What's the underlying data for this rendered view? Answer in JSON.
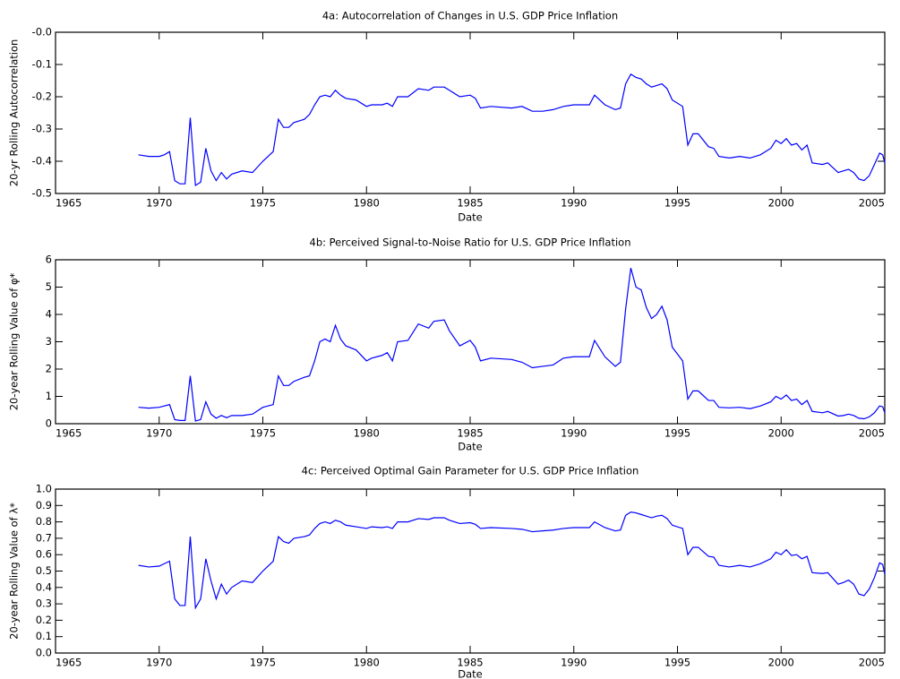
{
  "chart_data": [
    {
      "type": "line",
      "title": "4a: Autocorrelation of Changes in U.S. GDP Price Inflation",
      "x_label": "Date",
      "y_label": "20-yr Rolling Autocorrelation",
      "xlim": [
        1965,
        2005
      ],
      "xticks": [
        1965,
        1970,
        1975,
        1980,
        1985,
        1990,
        1995,
        2000,
        2005
      ],
      "ylim": [
        -0.5,
        0
      ],
      "yticks": [
        -0.5,
        -0.4,
        -0.3,
        -0.2,
        -0.1,
        {
          "value": 0,
          "label": "-0.0"
        }
      ],
      "x": [
        1969.0,
        1969.5,
        1970.0,
        1970.25,
        1970.5,
        1970.75,
        1971.0,
        1971.25,
        1971.5,
        1971.75,
        1972.0,
        1972.25,
        1972.5,
        1972.75,
        1973.0,
        1973.25,
        1973.5,
        1974.0,
        1974.5,
        1975.0,
        1975.5,
        1975.75,
        1976.0,
        1976.25,
        1976.5,
        1977.0,
        1977.25,
        1977.5,
        1977.75,
        1978.0,
        1978.25,
        1978.5,
        1978.75,
        1979.0,
        1979.5,
        1980.0,
        1980.25,
        1980.75,
        1981.0,
        1981.25,
        1981.5,
        1982.0,
        1982.5,
        1983.0,
        1983.25,
        1983.75,
        1984.0,
        1984.5,
        1985.0,
        1985.25,
        1985.5,
        1986.0,
        1987.0,
        1987.5,
        1988.0,
        1988.5,
        1989.0,
        1989.5,
        1990.0,
        1990.75,
        1991.0,
        1991.5,
        1992.0,
        1992.25,
        1992.5,
        1992.75,
        1993.0,
        1993.25,
        1993.5,
        1993.75,
        1994.0,
        1994.25,
        1994.5,
        1994.75,
        1995.25,
        1995.5,
        1995.75,
        1996.0,
        1996.5,
        1996.75,
        1997.0,
        1997.5,
        1998.0,
        1998.5,
        1999.0,
        1999.5,
        1999.75,
        2000.0,
        2000.25,
        2000.5,
        2000.75,
        2001.0,
        2001.25,
        2001.5,
        2002.0,
        2002.25,
        2002.75,
        2003.0,
        2003.25,
        2003.5,
        2003.75,
        2004.0,
        2004.25,
        2004.5,
        2004.75,
        2004.9,
        2005.0
      ],
      "series": [
        {
          "color": "#0000ff",
          "values": [
            -0.38,
            -0.385,
            -0.385,
            -0.38,
            -0.37,
            -0.46,
            -0.47,
            -0.47,
            -0.265,
            -0.475,
            -0.465,
            -0.36,
            -0.43,
            -0.46,
            -0.435,
            -0.455,
            -0.44,
            -0.43,
            -0.435,
            -0.4,
            -0.37,
            -0.27,
            -0.295,
            -0.295,
            -0.28,
            -0.27,
            -0.255,
            -0.225,
            -0.2,
            -0.195,
            -0.2,
            -0.18,
            -0.195,
            -0.205,
            -0.21,
            -0.23,
            -0.225,
            -0.225,
            -0.22,
            -0.23,
            -0.2,
            -0.2,
            -0.175,
            -0.18,
            -0.17,
            -0.17,
            -0.18,
            -0.2,
            -0.195,
            -0.205,
            -0.235,
            -0.23,
            -0.235,
            -0.23,
            -0.245,
            -0.245,
            -0.24,
            -0.23,
            -0.225,
            -0.225,
            -0.195,
            -0.225,
            -0.24,
            -0.235,
            -0.16,
            -0.13,
            -0.14,
            -0.145,
            -0.16,
            -0.17,
            -0.165,
            -0.16,
            -0.175,
            -0.21,
            -0.23,
            -0.35,
            -0.315,
            -0.315,
            -0.355,
            -0.36,
            -0.385,
            -0.39,
            -0.385,
            -0.39,
            -0.38,
            -0.36,
            -0.335,
            -0.345,
            -0.33,
            -0.35,
            -0.345,
            -0.365,
            -0.35,
            -0.405,
            -0.41,
            -0.405,
            -0.435,
            -0.43,
            -0.425,
            -0.435,
            -0.455,
            -0.46,
            -0.445,
            -0.41,
            -0.375,
            -0.38,
            -0.405
          ]
        }
      ]
    },
    {
      "type": "line",
      "title": "4b: Perceived Signal-to-Noise Ratio for U.S. GDP Price Inflation",
      "x_label": "Date",
      "y_label": "20-year Rolling Value of φ*",
      "xlim": [
        1965,
        2005
      ],
      "xticks": [
        1965,
        1970,
        1975,
        1980,
        1985,
        1990,
        1995,
        2000,
        2005
      ],
      "ylim": [
        0,
        6
      ],
      "yticks": [
        0,
        1,
        2,
        3,
        4,
        5,
        6
      ],
      "x": [
        1969.0,
        1969.5,
        1970.0,
        1970.25,
        1970.5,
        1970.75,
        1971.0,
        1971.25,
        1971.5,
        1971.75,
        1972.0,
        1972.25,
        1972.5,
        1972.75,
        1973.0,
        1973.25,
        1973.5,
        1974.0,
        1974.5,
        1975.0,
        1975.5,
        1975.75,
        1976.0,
        1976.25,
        1976.5,
        1977.0,
        1977.25,
        1977.5,
        1977.75,
        1978.0,
        1978.25,
        1978.5,
        1978.75,
        1979.0,
        1979.5,
        1980.0,
        1980.25,
        1980.75,
        1981.0,
        1981.25,
        1981.5,
        1982.0,
        1982.5,
        1983.0,
        1983.25,
        1983.75,
        1984.0,
        1984.5,
        1985.0,
        1985.25,
        1985.5,
        1986.0,
        1987.0,
        1987.5,
        1988.0,
        1988.5,
        1989.0,
        1989.5,
        1990.0,
        1990.75,
        1991.0,
        1991.5,
        1992.0,
        1992.25,
        1992.5,
        1992.75,
        1993.0,
        1993.25,
        1993.5,
        1993.75,
        1994.0,
        1994.25,
        1994.5,
        1994.75,
        1995.25,
        1995.5,
        1995.75,
        1996.0,
        1996.5,
        1996.75,
        1997.0,
        1997.5,
        1998.0,
        1998.5,
        1999.0,
        1999.5,
        1999.75,
        2000.0,
        2000.25,
        2000.5,
        2000.75,
        2001.0,
        2001.25,
        2001.5,
        2002.0,
        2002.25,
        2002.75,
        2003.0,
        2003.25,
        2003.5,
        2003.75,
        2004.0,
        2004.25,
        2004.5,
        2004.75,
        2004.9,
        2005.0
      ],
      "series": [
        {
          "color": "#0000ff",
          "values": [
            0.6,
            0.57,
            0.6,
            0.65,
            0.7,
            0.15,
            0.12,
            0.12,
            1.75,
            0.1,
            0.15,
            0.8,
            0.35,
            0.2,
            0.3,
            0.22,
            0.3,
            0.3,
            0.35,
            0.6,
            0.7,
            1.75,
            1.4,
            1.4,
            1.55,
            1.7,
            1.75,
            2.3,
            3.0,
            3.1,
            3.0,
            3.6,
            3.1,
            2.85,
            2.7,
            2.3,
            2.4,
            2.5,
            2.6,
            2.3,
            3.0,
            3.05,
            3.65,
            3.5,
            3.75,
            3.8,
            3.4,
            2.85,
            3.05,
            2.8,
            2.3,
            2.4,
            2.35,
            2.25,
            2.05,
            2.1,
            2.15,
            2.4,
            2.45,
            2.45,
            3.05,
            2.45,
            2.1,
            2.25,
            4.2,
            5.7,
            5.0,
            4.9,
            4.25,
            3.85,
            4.0,
            4.3,
            3.8,
            2.8,
            2.3,
            0.9,
            1.2,
            1.2,
            0.85,
            0.85,
            0.6,
            0.58,
            0.6,
            0.55,
            0.65,
            0.8,
            1.0,
            0.9,
            1.05,
            0.85,
            0.9,
            0.7,
            0.85,
            0.45,
            0.4,
            0.45,
            0.28,
            0.3,
            0.35,
            0.3,
            0.2,
            0.18,
            0.25,
            0.4,
            0.65,
            0.62,
            0.4
          ]
        }
      ]
    },
    {
      "type": "line",
      "title": "4c: Perceived Optimal Gain Parameter for U.S. GDP Price Inflation",
      "x_label": "Date",
      "y_label": "20-year Rolling Value of λ*",
      "xlim": [
        1965,
        2005
      ],
      "xticks": [
        1965,
        1970,
        1975,
        1980,
        1985,
        1990,
        1995,
        2000,
        2005
      ],
      "ylim": [
        0,
        1
      ],
      "yticks": [
        {
          "value": 0,
          "label": "0.0"
        },
        0.1,
        0.2,
        0.3,
        0.4,
        0.5,
        0.6,
        0.7,
        0.8,
        0.9,
        {
          "value": 1,
          "label": "1.0"
        }
      ],
      "x": [
        1969.0,
        1969.5,
        1970.0,
        1970.25,
        1970.5,
        1970.75,
        1971.0,
        1971.25,
        1971.5,
        1971.75,
        1972.0,
        1972.25,
        1972.5,
        1972.75,
        1973.0,
        1973.25,
        1973.5,
        1974.0,
        1974.5,
        1975.0,
        1975.5,
        1975.75,
        1976.0,
        1976.25,
        1976.5,
        1977.0,
        1977.25,
        1977.5,
        1977.75,
        1978.0,
        1978.25,
        1978.5,
        1978.75,
        1979.0,
        1979.5,
        1980.0,
        1980.25,
        1980.75,
        1981.0,
        1981.25,
        1981.5,
        1982.0,
        1982.5,
        1983.0,
        1983.25,
        1983.75,
        1984.0,
        1984.5,
        1985.0,
        1985.25,
        1985.5,
        1986.0,
        1987.0,
        1987.5,
        1988.0,
        1988.5,
        1989.0,
        1989.5,
        1990.0,
        1990.75,
        1991.0,
        1991.5,
        1992.0,
        1992.25,
        1992.5,
        1992.75,
        1993.0,
        1993.25,
        1993.5,
        1993.75,
        1994.0,
        1994.25,
        1994.5,
        1994.75,
        1995.25,
        1995.5,
        1995.75,
        1996.0,
        1996.5,
        1996.75,
        1997.0,
        1997.5,
        1998.0,
        1998.5,
        1999.0,
        1999.5,
        1999.75,
        2000.0,
        2000.25,
        2000.5,
        2000.75,
        2001.0,
        2001.25,
        2001.5,
        2002.0,
        2002.25,
        2002.75,
        2003.0,
        2003.25,
        2003.5,
        2003.75,
        2004.0,
        2004.25,
        2004.5,
        2004.75,
        2004.9,
        2005.0
      ],
      "series": [
        {
          "color": "#0000ff",
          "values": [
            0.535,
            0.525,
            0.53,
            0.545,
            0.56,
            0.33,
            0.29,
            0.29,
            0.71,
            0.275,
            0.33,
            0.575,
            0.44,
            0.33,
            0.42,
            0.36,
            0.4,
            0.44,
            0.43,
            0.5,
            0.56,
            0.71,
            0.68,
            0.67,
            0.7,
            0.71,
            0.72,
            0.76,
            0.79,
            0.8,
            0.79,
            0.81,
            0.8,
            0.78,
            0.77,
            0.76,
            0.77,
            0.765,
            0.77,
            0.76,
            0.8,
            0.8,
            0.82,
            0.815,
            0.825,
            0.825,
            0.81,
            0.79,
            0.795,
            0.785,
            0.76,
            0.765,
            0.76,
            0.755,
            0.74,
            0.745,
            0.75,
            0.76,
            0.765,
            0.765,
            0.8,
            0.765,
            0.745,
            0.75,
            0.84,
            0.86,
            0.855,
            0.845,
            0.835,
            0.825,
            0.835,
            0.84,
            0.82,
            0.78,
            0.76,
            0.6,
            0.645,
            0.645,
            0.59,
            0.585,
            0.535,
            0.525,
            0.535,
            0.525,
            0.545,
            0.575,
            0.615,
            0.6,
            0.63,
            0.595,
            0.6,
            0.575,
            0.59,
            0.49,
            0.485,
            0.49,
            0.42,
            0.43,
            0.445,
            0.42,
            0.36,
            0.35,
            0.39,
            0.46,
            0.55,
            0.54,
            0.48
          ]
        }
      ]
    }
  ]
}
